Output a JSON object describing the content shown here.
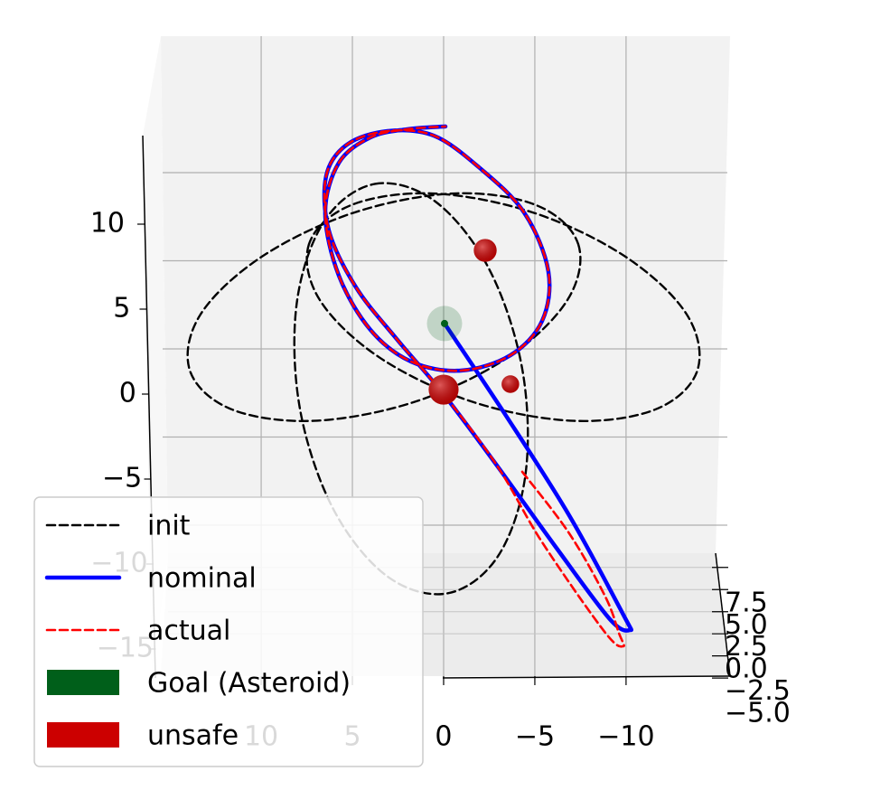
{
  "chart_data": {
    "type": "line3d",
    "xlim": [
      15.5,
      -15.7
    ],
    "zlim": [
      -16,
      16
    ],
    "ylim": [
      -5.5,
      8.5
    ],
    "xticks": [
      10,
      5,
      0,
      {
        "value": -5,
        "label": "−5"
      },
      {
        "value": -10,
        "label": "−10"
      }
    ],
    "zticks": [
      10,
      5,
      0,
      {
        "value": -5,
        "label": "−5"
      },
      {
        "value": -10,
        "label": "−10"
      },
      {
        "value": -15,
        "label": "−15"
      }
    ],
    "yticks": [
      {
        "value": -5,
        "label": "−5.0"
      },
      {
        "value": -2.5,
        "label": "−2.5"
      },
      {
        "value": 0,
        "label": "0.0"
      },
      {
        "value": 2.5,
        "label": "2.5"
      },
      {
        "value": 5,
        "label": "5.0"
      },
      {
        "value": 7.5,
        "label": "7.5"
      }
    ],
    "grid": true,
    "series": [
      {
        "name": "init",
        "color": "#000000",
        "dashed": true,
        "closed": true,
        "lines": [
          {
            "x": [
              -7.38,
              -6.79,
              -3.51,
              1.58,
              7.13,
              11.64,
              13.91,
              13.33,
              10.0,
              4.95,
              -0.6,
              -5.11
            ],
            "z": [
              8.76,
              5.6,
              2.33,
              -0.18,
              -1.26,
              -0.6,
              1.6,
              4.77,
              8.03,
              10.54,
              11.64,
              10.96
            ]
          },
          {
            "x": [
              7.38,
              6.79,
              3.51,
              -1.58,
              -7.13,
              -11.64,
              -13.91,
              -13.33,
              -10.0,
              -4.95,
              0.6,
              5.11
            ],
            "z": [
              8.76,
              5.6,
              2.33,
              -0.18,
              -1.26,
              -0.6,
              1.6,
              4.77,
              8.03,
              10.54,
              11.64,
              10.96
            ]
          },
          {
            "x": [
              3.76,
              0.45,
              -2.5,
              -4.31,
              -4.49,
              -2.98,
              -0.2,
              3.12,
              6.07,
              7.88,
              8.05,
              6.54
            ],
            "z": [
              12.18,
              11.18,
              7.34,
              1.68,
              -4.28,
              -8.94,
              -11.05,
              -10.06,
              -6.22,
              -0.55,
              5.41,
              10.07
            ]
          }
        ]
      },
      {
        "name": "nominal",
        "color": "#0000ff",
        "dashed": false,
        "closed": false,
        "lines": [
          {
            "x": [
              -0.05,
              -3.42,
              -6.88,
              -9.85,
              -10.2,
              -9.11,
              -6.14,
              -2.92,
              0.05,
              2.57,
              4.8,
              6.29,
              6.44,
              5.3,
              3.07,
              0.54,
              -1.93,
              -4.41,
              -5.74,
              -5.4,
              -3.66,
              -0.94,
              1.78,
              4.01,
              5.74,
              6.49,
              5.74,
              4.01,
              2.03,
              -0.1
            ],
            "z": [
              4.26,
              -0.97,
              -6.62,
              -12.26,
              -13.13,
              -12.51,
              -8.41,
              -3.79,
              0.31,
              3.38,
              6.31,
              9.54,
              12.62,
              14.41,
              15.18,
              14.92,
              13.13,
              10.56,
              7.23,
              4.41,
              2.46,
              1.59,
              2.1,
              3.9,
              6.97,
              10.56,
              13.38,
              14.82,
              15.28,
              15.44
            ]
          }
        ]
      },
      {
        "name": "actual",
        "color": "#ff0000",
        "dashed": true,
        "closed": false,
        "lines": [
          {
            "x": [
              -4.31,
              -6.88,
              -8.86,
              -9.6,
              -9.85,
              -8.86,
              -5.4,
              -2.92,
              0.05,
              2.57,
              4.8,
              6.29,
              6.44,
              5.3,
              3.07,
              0.54,
              -1.93,
              -4.41,
              -5.74,
              -5.4,
              -3.66,
              -0.94,
              1.78,
              4.01,
              5.74,
              6.49,
              5.74,
              4.01,
              2.03,
              -0.1
            ],
            "z": [
              -4.15,
              -7.64,
              -11.23,
              -13.28,
              -14.05,
              -13.28,
              -8.15,
              -3.79,
              0.31,
              3.38,
              6.31,
              9.54,
              12.62,
              14.41,
              15.18,
              14.92,
              13.13,
              10.56,
              7.23,
              4.41,
              2.46,
              1.59,
              2.1,
              3.9,
              6.97,
              10.56,
              13.38,
              14.82,
              15.28,
              15.44
            ]
          }
        ]
      }
    ],
    "markers": [
      {
        "name": "Goal (Asteroid)",
        "color": "#005f1a",
        "points": [
          {
            "x": -0.05,
            "z": 4.26,
            "r": 1.0
          }
        ]
      },
      {
        "name": "unsafe",
        "color": "#cc0000",
        "points": [
          {
            "x": -2.28,
            "z": 8.41,
            "r": 0.65
          },
          {
            "x": -3.66,
            "z": 0.82,
            "r": 0.5
          },
          {
            "x": 0,
            "z": 0.51,
            "r": 0.85
          }
        ]
      }
    ]
  }
}
